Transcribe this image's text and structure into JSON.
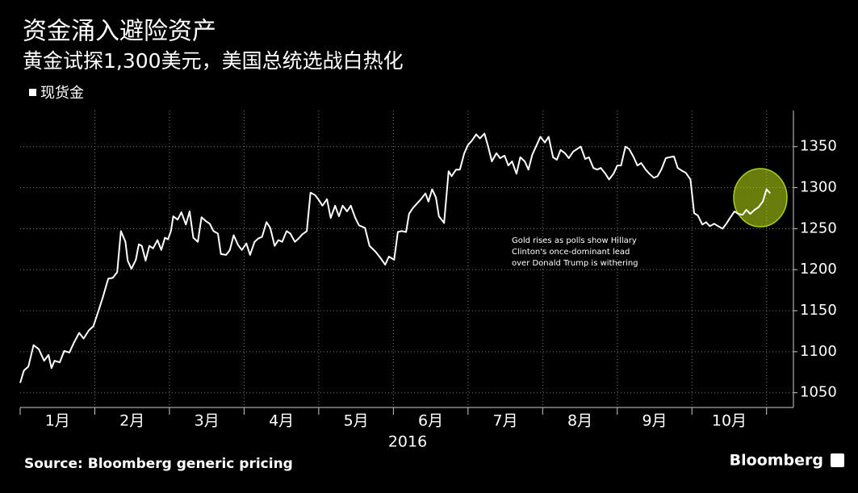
{
  "chart_data": {
    "type": "line",
    "title": "资金涌入避险资产",
    "subtitle": "黄金试探1,300美元，美国总统选战白热化",
    "x_label": "2016",
    "source": "Source: Bloomberg generic pricing",
    "brand": "Bloomberg",
    "annotation": [
      "Gold rises as polls show Hillary",
      "Clinton's once-dominant lead",
      "over Donald Trump is withering"
    ],
    "grid": true,
    "xlim": [
      0,
      10.36
    ],
    "xticks": [
      {
        "value": 0.5,
        "label": "1月"
      },
      {
        "value": 1.5,
        "label": "2月"
      },
      {
        "value": 2.5,
        "label": "3月"
      },
      {
        "value": 3.5,
        "label": "4月"
      },
      {
        "value": 4.5,
        "label": "5月"
      },
      {
        "value": 5.5,
        "label": "6月"
      },
      {
        "value": 6.5,
        "label": "7月"
      },
      {
        "value": 7.5,
        "label": "8月"
      },
      {
        "value": 8.5,
        "label": "9月"
      },
      {
        "value": 9.5,
        "label": "10月"
      }
    ],
    "ylim": [
      1032,
      1394
    ],
    "yticks": [
      1050,
      1100,
      1150,
      1200,
      1250,
      1300,
      1350
    ],
    "series": [
      {
        "name": "现货金",
        "color": "#ffffff",
        "x": [
          0,
          0.05,
          0.11,
          0.18,
          0.25,
          0.32,
          0.38,
          0.42,
          0.46,
          0.53,
          0.59,
          0.66,
          0.72,
          0.79,
          0.85,
          0.92,
          0.98,
          1.05,
          1.11,
          1.18,
          1.24,
          1.3,
          1.35,
          1.41,
          1.44,
          1.49,
          1.55,
          1.59,
          1.63,
          1.68,
          1.73,
          1.78,
          1.84,
          1.89,
          1.94,
          1.98,
          2.02,
          2.05,
          2.11,
          2.16,
          2.22,
          2.27,
          2.32,
          2.38,
          2.43,
          2.49,
          2.54,
          2.59,
          2.65,
          2.69,
          2.76,
          2.81,
          2.86,
          2.92,
          2.97,
          3.03,
          3.08,
          3.14,
          3.19,
          3.24,
          3.3,
          3.35,
          3.41,
          3.46,
          3.51,
          3.57,
          3.62,
          3.68,
          3.73,
          3.78,
          3.84,
          3.89,
          3.95,
          4.0,
          4.05,
          4.11,
          4.16,
          4.22,
          4.27,
          4.32,
          4.38,
          4.43,
          4.49,
          4.54,
          4.62,
          4.68,
          4.76,
          4.83,
          4.89,
          4.94,
          5.01,
          5.06,
          5.11,
          5.17,
          5.21,
          5.26,
          5.32,
          5.37,
          5.43,
          5.47,
          5.52,
          5.57,
          5.61,
          5.68,
          5.74,
          5.78,
          5.84,
          5.89,
          5.95,
          6.0,
          6.05,
          6.11,
          6.16,
          6.22,
          6.27,
          6.32,
          6.38,
          6.43,
          6.49,
          6.54,
          6.59,
          6.65,
          6.7,
          6.76,
          6.81,
          6.86,
          6.92,
          6.97,
          7.03,
          7.08,
          7.14,
          7.19,
          7.24,
          7.3,
          7.35,
          7.41,
          7.46,
          7.51,
          7.57,
          7.62,
          7.68,
          7.73,
          7.78,
          7.84,
          7.89,
          7.95,
          8.0,
          8.05,
          8.11,
          8.16,
          8.22,
          8.27,
          8.32,
          8.38,
          8.43,
          8.49,
          8.54,
          8.59,
          8.65,
          8.7,
          8.76,
          8.81,
          8.86,
          8.92,
          8.98,
          9.03,
          9.08,
          9.14,
          9.19,
          9.24,
          9.3,
          9.35,
          9.41,
          9.46,
          9.51,
          9.57,
          9.62,
          9.68,
          9.73,
          9.78,
          9.84,
          9.89,
          9.95,
          10.0,
          10.05
        ],
        "values": [
          1062,
          1077,
          1082,
          1108,
          1103,
          1089,
          1096,
          1080,
          1089,
          1087,
          1101,
          1099,
          1111,
          1123,
          1116,
          1126,
          1131,
          1150,
          1167,
          1189,
          1190,
          1197,
          1247,
          1234,
          1211,
          1201,
          1212,
          1231,
          1229,
          1211,
          1229,
          1226,
          1236,
          1224,
          1239,
          1237,
          1247,
          1265,
          1261,
          1270,
          1255,
          1271,
          1239,
          1234,
          1264,
          1259,
          1256,
          1247,
          1244,
          1219,
          1218,
          1224,
          1242,
          1230,
          1224,
          1232,
          1218,
          1234,
          1238,
          1240,
          1258,
          1251,
          1229,
          1236,
          1234,
          1247,
          1244,
          1234,
          1238,
          1243,
          1247,
          1294,
          1291,
          1285,
          1278,
          1286,
          1263,
          1278,
          1265,
          1278,
          1271,
          1278,
          1263,
          1254,
          1251,
          1229,
          1222,
          1214,
          1206,
          1216,
          1212,
          1246,
          1247,
          1246,
          1268,
          1275,
          1281,
          1286,
          1293,
          1283,
          1298,
          1288,
          1265,
          1257,
          1320,
          1314,
          1322,
          1322,
          1342,
          1352,
          1357,
          1365,
          1360,
          1366,
          1350,
          1332,
          1342,
          1336,
          1339,
          1327,
          1332,
          1317,
          1337,
          1332,
          1322,
          1340,
          1352,
          1362,
          1355,
          1362,
          1337,
          1334,
          1346,
          1342,
          1336,
          1344,
          1347,
          1350,
          1335,
          1337,
          1324,
          1322,
          1324,
          1317,
          1310,
          1317,
          1327,
          1327,
          1350,
          1347,
          1337,
          1327,
          1330,
          1322,
          1317,
          1312,
          1314,
          1322,
          1336,
          1337,
          1338,
          1324,
          1321,
          1318,
          1310,
          1269,
          1266,
          1255,
          1258,
          1253,
          1256,
          1253,
          1250,
          1256,
          1263,
          1271,
          1268,
          1267,
          1273,
          1268,
          1273,
          1276,
          1283,
          1298,
          1293
        ]
      }
    ]
  }
}
